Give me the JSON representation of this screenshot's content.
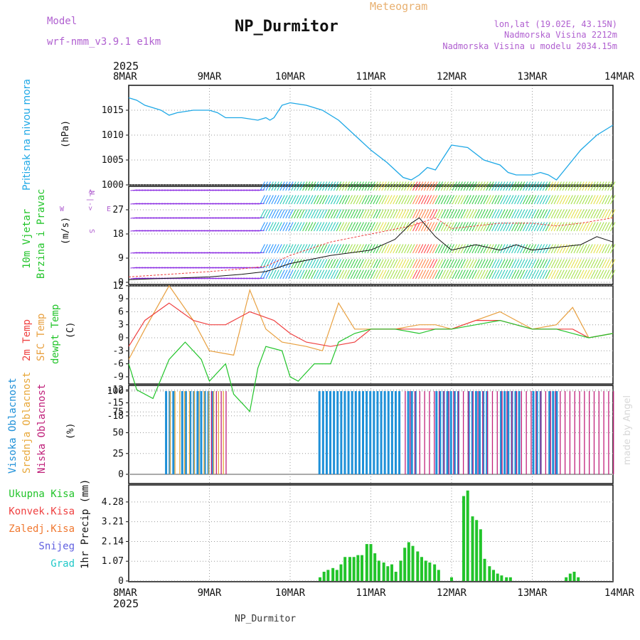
{
  "header": {
    "model_label": "Model",
    "model_value": "wrf-nmm_v3.9.1  e1km",
    "meteogram": "Meteogram",
    "station": "NP_Durmitor",
    "lonlat": "lon,lat (19.02E, 43.15N)",
    "elevation": "Nadmorska Visina 2212m",
    "elevation_model": "Nadmorska Visina u modelu 2034.15m",
    "year_top": "2025",
    "year_bottom": "2025",
    "footer_station": "NP_Durmitor",
    "credit": "made by Angel"
  },
  "colors": {
    "pressure": "#1ea8e6",
    "temp2m": "#ef4040",
    "sfc": "#e8a040",
    "dewpt": "#22c42a",
    "high_cloud": "#1e90d8",
    "mid_cloud": "#e8a83a",
    "low_cloud": "#c0207a",
    "precip": "#22c42a",
    "wind_label": "#22c42a",
    "title_purple": "#b060d0"
  },
  "dates": [
    "8MAR",
    "9MAR",
    "10MAR",
    "11MAR",
    "12MAR",
    "13MAR",
    "14MAR"
  ],
  "panels": {
    "pressure": {
      "label": "Pritisak na nivou mora",
      "unit": "(hPa)",
      "ticks": [
        "1015",
        "1010",
        "1005",
        "1000"
      ]
    },
    "wind": {
      "label1": "10m Vjetar",
      "label2": "Brzina i Pravac",
      "unit": "(m/s)",
      "ticks": [
        "27",
        "18",
        "9",
        "0"
      ],
      "compass": [
        "N",
        "E",
        "W",
        "S"
      ]
    },
    "temp": {
      "label1": "2m Temp",
      "label2": "SFC Temp",
      "label3": "dewpt Temp",
      "unit": "(C)",
      "ticks": [
        "12",
        "9",
        "6",
        "3",
        "0",
        "-3",
        "-6",
        "-9",
        "-12",
        "-15",
        "-18"
      ]
    },
    "cloud": {
      "label1": "Visoka Oblacnost",
      "label2": "Srednja Oblacnost",
      "label3": "Niska Oblacnost",
      "unit": "(%)",
      "ticks": [
        "100",
        "75",
        "50",
        "25",
        "0"
      ]
    },
    "precip": {
      "legend": [
        "Ukupna Kisa",
        "Konvek.Kisa",
        "Zaledj.Kisa",
        "Snijeg",
        "Grad"
      ],
      "legend_colors": [
        "#22c42a",
        "#ef4040",
        "#f07830",
        "#6060e0",
        "#20c8c8"
      ],
      "ylabel": "1hr Precip (mm)",
      "ticks": [
        "4.28",
        "3.21",
        "2.14",
        "1.07",
        "0"
      ]
    }
  },
  "chart_data": [
    {
      "type": "line",
      "title": "Pritisak na nivou mora",
      "ylabel": "(hPa)",
      "x_unit": "days since 2025-03-08 00:00",
      "ylim": [
        1000,
        1020
      ],
      "series": [
        {
          "name": "Pritisak na nivou mora",
          "x": [
            0,
            0.1,
            0.2,
            0.3,
            0.4,
            0.5,
            0.6,
            0.8,
            1.0,
            1.1,
            1.2,
            1.4,
            1.6,
            1.7,
            1.75,
            1.8,
            1.9,
            2.0,
            2.2,
            2.4,
            2.6,
            2.8,
            3.0,
            3.2,
            3.4,
            3.5,
            3.6,
            3.7,
            3.8,
            4.0,
            4.2,
            4.4,
            4.6,
            4.7,
            4.8,
            5.0,
            5.1,
            5.2,
            5.3,
            5.4,
            5.6,
            5.8,
            6.0
          ],
          "y": [
            1017.5,
            1017,
            1016,
            1015.5,
            1015,
            1014,
            1014.5,
            1015,
            1015,
            1014.5,
            1013.5,
            1013.5,
            1013,
            1013.5,
            1013,
            1013.5,
            1016,
            1016.5,
            1016,
            1015,
            1013,
            1010,
            1007,
            1004.5,
            1001.5,
            1001,
            1002,
            1003.5,
            1003,
            1008,
            1007.5,
            1005,
            1004,
            1002.5,
            1002,
            1002,
            1002.5,
            1002,
            1001,
            1003,
            1007,
            1010,
            1012
          ]
        }
      ]
    },
    {
      "type": "line",
      "title": "10m Vjetar Brzina i Pravac",
      "ylabel": "(m/s)",
      "x_unit": "days since 2025-03-08 00:00",
      "ylim": [
        -3,
        36
      ],
      "series": [
        {
          "name": "Brzina",
          "x": [
            0,
            0.5,
            1.0,
            1.4,
            1.7,
            2.0,
            2.5,
            3.0,
            3.3,
            3.5,
            3.6,
            3.8,
            4.0,
            4.3,
            4.6,
            4.8,
            5.0,
            5.3,
            5.6,
            5.8,
            6.0
          ],
          "y": [
            1,
            1.5,
            2,
            3,
            4,
            7,
            10,
            12,
            16,
            22,
            24,
            17,
            12,
            14,
            12,
            14,
            12,
            13,
            14,
            17,
            15
          ]
        },
        {
          "name": "Udari",
          "x": [
            0,
            0.5,
            1.0,
            1.4,
            1.7,
            2.0,
            2.5,
            3.0,
            3.5,
            3.8,
            4.0,
            4.3,
            4.6,
            5.0,
            5.3,
            5.6,
            6.0
          ],
          "y": [
            2,
            3,
            4,
            5,
            6,
            10,
            15,
            18,
            21,
            24,
            20,
            21,
            22,
            22,
            21,
            22,
            24
          ]
        }
      ]
    },
    {
      "type": "line",
      "title": "2m Temp / SFC Temp / dewpt Temp",
      "ylabel": "(C)",
      "x_unit": "days since 2025-03-08 00:00",
      "ylim": [
        -20,
        14
      ],
      "series": [
        {
          "name": "2m Temp",
          "x": [
            0,
            0.2,
            0.5,
            0.8,
            1.0,
            1.2,
            1.5,
            1.8,
            2.0,
            2.2,
            2.5,
            2.8,
            3.0,
            3.3,
            3.6,
            3.8,
            4.0,
            4.3,
            4.6,
            4.8,
            5.0,
            5.3,
            5.5,
            5.7,
            6.0
          ],
          "y": [
            -2,
            4,
            8,
            4,
            3,
            3,
            6,
            4,
            1,
            -1,
            -2,
            -1,
            2,
            2,
            2,
            2,
            2,
            4,
            4,
            3,
            2,
            2,
            2,
            0,
            1
          ]
        },
        {
          "name": "SFC Temp",
          "x": [
            0,
            0.2,
            0.5,
            0.8,
            1.0,
            1.3,
            1.5,
            1.7,
            1.9,
            2.2,
            2.4,
            2.6,
            2.8,
            3.0,
            3.3,
            3.6,
            3.8,
            4.0,
            4.3,
            4.6,
            4.8,
            5.0,
            5.3,
            5.5,
            5.7,
            6.0
          ],
          "y": [
            -5,
            2,
            12,
            4,
            -3,
            -4,
            11,
            2,
            -1,
            -2,
            -3,
            8,
            2,
            2,
            2,
            3,
            3,
            2,
            4,
            6,
            4,
            2,
            3,
            7,
            0,
            1
          ]
        },
        {
          "name": "dewpt Temp",
          "x": [
            0,
            0.1,
            0.3,
            0.5,
            0.7,
            0.9,
            1.0,
            1.2,
            1.3,
            1.5,
            1.6,
            1.7,
            1.9,
            2.0,
            2.1,
            2.3,
            2.5,
            2.6,
            2.8,
            3.0,
            3.3,
            3.6,
            3.8,
            4.0,
            4.3,
            4.6,
            4.8,
            5.0,
            5.3,
            5.5,
            5.7,
            6.0
          ],
          "y": [
            -6,
            -12,
            -14,
            -5,
            -1,
            -5,
            -10,
            -6,
            -13,
            -17,
            -7,
            -2,
            -3,
            -9,
            -10,
            -6,
            -6,
            -1,
            1,
            2,
            2,
            1,
            2,
            2,
            3,
            4,
            3,
            2,
            2,
            1,
            0,
            1
          ]
        }
      ]
    },
    {
      "type": "bar",
      "title": "Visoka / Srednja / Niska Oblacnost",
      "ylabel": "(%)",
      "x_unit": "days since 2025-03-08 00:00",
      "ylim": [
        0,
        100
      ],
      "series": [
        {
          "name": "Visoka Oblacnost",
          "ranges": [
            [
              0.45,
              0.55
            ],
            [
              0.65,
              0.7
            ],
            [
              0.75,
              1.05
            ],
            [
              2.35,
              3.35
            ],
            [
              3.45,
              3.55
            ],
            [
              3.8,
              4.1
            ],
            [
              4.2,
              4.45
            ],
            [
              4.6,
              4.85
            ],
            [
              5.0,
              5.1
            ],
            [
              5.2,
              5.3
            ]
          ],
          "value": 100
        },
        {
          "name": "Srednja Oblacnost",
          "ranges": [
            [
              0.5,
              1.2
            ]
          ],
          "value": 100
        },
        {
          "name": "Niska Oblacnost",
          "ranges": [
            [
              1.0,
              1.2
            ],
            [
              3.4,
              6.0
            ]
          ],
          "value": 100
        }
      ]
    },
    {
      "type": "bar",
      "title": "1hr Precip",
      "ylabel": "1hr Precip (mm)",
      "x_unit": "days since 2025-03-08 00:00",
      "ylim": [
        0,
        5.2
      ],
      "series": [
        {
          "name": "Ukupna Kisa",
          "x": [
            2.37,
            2.42,
            2.47,
            2.53,
            2.58,
            2.63,
            2.68,
            2.74,
            2.79,
            2.84,
            2.89,
            2.95,
            3.0,
            3.05,
            3.1,
            3.16,
            3.21,
            3.26,
            3.31,
            3.37,
            3.42,
            3.47,
            3.52,
            3.58,
            3.63,
            3.68,
            3.73,
            3.79,
            3.84,
            4.0,
            4.15,
            4.2,
            4.26,
            4.31,
            4.36,
            4.41,
            4.47,
            4.52,
            4.57,
            4.62,
            4.68,
            4.73,
            5.42,
            5.47,
            5.52,
            5.57
          ],
          "y": [
            0.2,
            0.5,
            0.6,
            0.7,
            0.6,
            0.9,
            1.3,
            1.3,
            1.3,
            1.4,
            1.4,
            2.0,
            2.0,
            1.5,
            1.1,
            1.0,
            0.8,
            0.9,
            0.5,
            1.1,
            1.8,
            2.1,
            1.9,
            1.6,
            1.3,
            1.1,
            1.0,
            0.9,
            0.6,
            0.2,
            4.6,
            4.9,
            3.5,
            3.3,
            2.8,
            1.2,
            0.8,
            0.6,
            0.4,
            0.3,
            0.2,
            0.2,
            0.2,
            0.4,
            0.5,
            0.2
          ]
        }
      ]
    }
  ]
}
